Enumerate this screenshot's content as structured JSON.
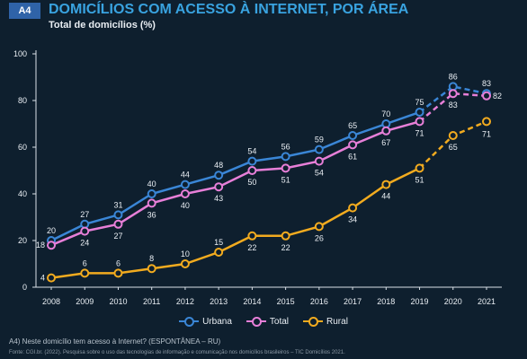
{
  "header": {
    "tag": "A4",
    "title": "DOMICÍLIOS COM ACESSO À INTERNET, POR ÁREA",
    "subtitle": "Total de domicílios (%)"
  },
  "footnote": "A4) Neste domicílio tem acesso à Internet? (ESPONTÂNEA – RU)",
  "source": "Fonte: CGI.br. (2022). Pesquisa sobre o uso das tecnologias de informação e comunicação nos domicílios brasileiros – TIC Domicílios 2021.",
  "colors": {
    "background": "#0e1f2e",
    "urbana": "#3a86d6",
    "total": "#e77fd8",
    "rural": "#f2ab1f",
    "title": "#39a3e0"
  },
  "chart_data": {
    "type": "line",
    "title": "DOMICÍLIOS COM ACESSO À INTERNET, POR ÁREA",
    "ylabel": "Total de domicílios (%)",
    "ylim": [
      0,
      100
    ],
    "yticks": [
      0,
      20,
      40,
      60,
      80,
      100
    ],
    "grid": false,
    "legend": "bottom-center",
    "x": [
      "2008",
      "2009",
      "2010",
      "2011",
      "2012",
      "2013",
      "2014",
      "2015",
      "2016",
      "2017",
      "2018",
      "2019",
      "2020",
      "2021"
    ],
    "series": [
      {
        "name": "Urbana",
        "color": "#3a86d6",
        "values": [
          20,
          27,
          31,
          40,
          44,
          48,
          54,
          56,
          59,
          65,
          70,
          75,
          86,
          83
        ],
        "dashed_from": "2019"
      },
      {
        "name": "Total",
        "color": "#e77fd8",
        "values": [
          18,
          24,
          27,
          36,
          40,
          43,
          50,
          51,
          54,
          61,
          67,
          71,
          83,
          82
        ],
        "dashed_from": "2019"
      },
      {
        "name": "Rural",
        "color": "#f2ab1f",
        "values": [
          4,
          6,
          6,
          8,
          10,
          15,
          22,
          22,
          26,
          34,
          44,
          51,
          65,
          71
        ],
        "dashed_from": "2019"
      }
    ]
  }
}
